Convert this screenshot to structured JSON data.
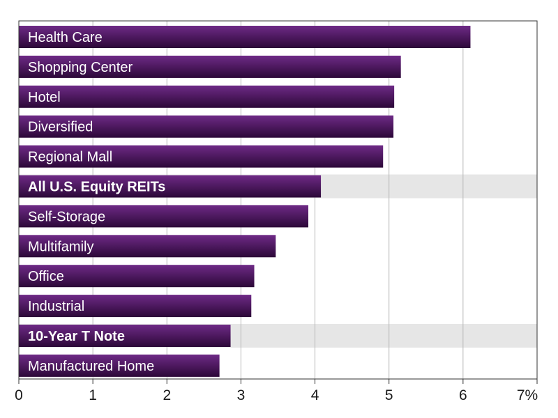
{
  "chart_data": {
    "type": "bar",
    "orientation": "horizontal",
    "categories": [
      "Health Care",
      "Shopping Center",
      "Hotel",
      "Diversified",
      "Regional Mall",
      "All U.S. Equity REITs",
      "Self-Storage",
      "Multifamily",
      "Office",
      "Industrial",
      "10-Year T Note",
      "Manufactured Home"
    ],
    "values": [
      6.1,
      5.16,
      5.07,
      5.06,
      4.92,
      4.08,
      3.91,
      3.47,
      3.18,
      3.14,
      2.86,
      2.71
    ],
    "highlighted": [
      "All U.S. Equity REITs",
      "10-Year T Note"
    ],
    "x_ticks": [
      "0",
      "1",
      "2",
      "3",
      "4",
      "5",
      "6",
      "7%"
    ],
    "xlim": [
      0,
      7
    ],
    "grid": "vertical",
    "title": "",
    "xlabel": "",
    "ylabel": "",
    "colors": {
      "bar_top": "#6e2a86",
      "bar_bottom": "#2c0838",
      "highlight_band": "#e6e6e6",
      "grid": "#b8b8b8",
      "axis": "#333333",
      "label_text": "#ffffff"
    }
  }
}
